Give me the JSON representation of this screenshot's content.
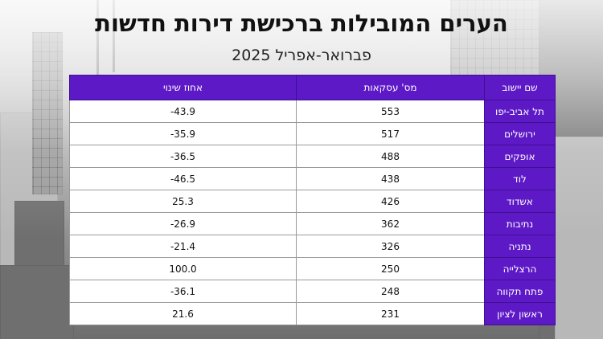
{
  "title": "הערים המובילות ברכישת דירות חדשות",
  "subtitle": "פברואר-אפריל 2025",
  "table": {
    "headers": [
      "שם יישוב",
      "מס' עסקאות",
      "אחוז שינוי"
    ],
    "rows": [
      {
        "city": "תל אביב-יפו",
        "deals": "553",
        "change": "-43.9"
      },
      {
        "city": "ירושלים",
        "deals": "517",
        "change": "-35.9"
      },
      {
        "city": "אופקים",
        "deals": "488",
        "change": "-36.5"
      },
      {
        "city": "לוד",
        "deals": "438",
        "change": "-46.5"
      },
      {
        "city": "אשדוד",
        "deals": "426",
        "change": "25.3"
      },
      {
        "city": "נתיבות",
        "deals": "362",
        "change": "-26.9"
      },
      {
        "city": "נתניה",
        "deals": "326",
        "change": "-21.4"
      },
      {
        "city": "הרצלייה",
        "deals": "250",
        "change": "100.0"
      },
      {
        "city": "פתח תקווה",
        "deals": "248",
        "change": "-36.1"
      },
      {
        "city": "ראשון לציון",
        "deals": "231",
        "change": "21.6"
      }
    ]
  },
  "colors": {
    "accent": "#5d19c6",
    "cell_bg": "#ffffff",
    "text": "#111111"
  }
}
